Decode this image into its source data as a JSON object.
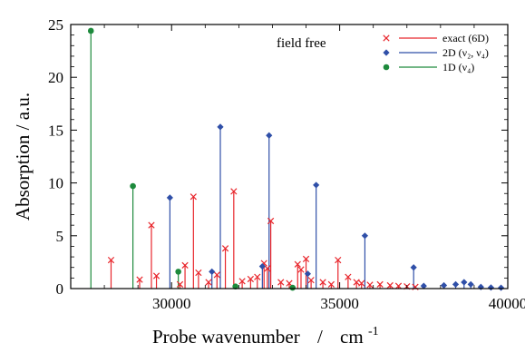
{
  "chart_data": {
    "type": "line",
    "subtype": "stick-spectrum",
    "annotation": "field free",
    "xlabel": "Probe wavenumber",
    "xlabel_sep": "/",
    "xunit": "cm",
    "xunit_exp": "-1",
    "ylabel": "Absorption / a.u.",
    "xlim": [
      27000,
      40000
    ],
    "ylim": [
      0,
      25
    ],
    "xticks": [
      30000,
      35000,
      40000
    ],
    "yticks": [
      0,
      5,
      10,
      15,
      20,
      25
    ],
    "grid": false,
    "legend_position": "top-right",
    "series": [
      {
        "name": "exact (6D)",
        "color": "#e8262c",
        "marker": "x",
        "points": [
          [
            28200,
            2.7
          ],
          [
            29050,
            0.85
          ],
          [
            29400,
            6.0
          ],
          [
            29550,
            1.2
          ],
          [
            30250,
            0.4
          ],
          [
            30400,
            2.2
          ],
          [
            30650,
            8.7
          ],
          [
            30800,
            1.5
          ],
          [
            31100,
            0.6
          ],
          [
            31350,
            1.3
          ],
          [
            31600,
            3.8
          ],
          [
            31850,
            9.2
          ],
          [
            32100,
            0.7
          ],
          [
            32350,
            0.9
          ],
          [
            32550,
            1.1
          ],
          [
            32750,
            2.4
          ],
          [
            32850,
            1.9
          ],
          [
            32950,
            6.4
          ],
          [
            33250,
            0.6
          ],
          [
            33500,
            0.5
          ],
          [
            33750,
            2.3
          ],
          [
            33850,
            1.8
          ],
          [
            34000,
            2.8
          ],
          [
            34150,
            0.8
          ],
          [
            34500,
            0.6
          ],
          [
            34750,
            0.4
          ],
          [
            34950,
            2.7
          ],
          [
            35250,
            1.1
          ],
          [
            35500,
            0.6
          ],
          [
            35650,
            0.5
          ],
          [
            35900,
            0.35
          ],
          [
            36200,
            0.4
          ],
          [
            36500,
            0.3
          ],
          [
            36750,
            0.25
          ],
          [
            37000,
            0.2
          ],
          [
            37250,
            0.15
          ]
        ]
      },
      {
        "name": "2D (ν₂, ν₄)",
        "color": "#2f4fa8",
        "marker": "diamond",
        "points": [
          [
            29950,
            8.6
          ],
          [
            31200,
            1.6
          ],
          [
            31450,
            15.3
          ],
          [
            32700,
            2.1
          ],
          [
            32900,
            14.5
          ],
          [
            34050,
            1.4
          ],
          [
            34300,
            9.8
          ],
          [
            35750,
            5.0
          ],
          [
            37200,
            2.0
          ],
          [
            37500,
            0.25
          ],
          [
            38100,
            0.3
          ],
          [
            38450,
            0.4
          ],
          [
            38700,
            0.6
          ],
          [
            38900,
            0.4
          ],
          [
            39200,
            0.15
          ],
          [
            39500,
            0.1
          ],
          [
            39800,
            0.08
          ]
        ]
      },
      {
        "name": "1D (ν₄)",
        "color": "#1d8a3c",
        "marker": "circle",
        "points": [
          [
            27600,
            24.4
          ],
          [
            28850,
            9.7
          ],
          [
            30200,
            1.6
          ],
          [
            31900,
            0.2
          ],
          [
            33600,
            0.08
          ]
        ]
      }
    ]
  }
}
